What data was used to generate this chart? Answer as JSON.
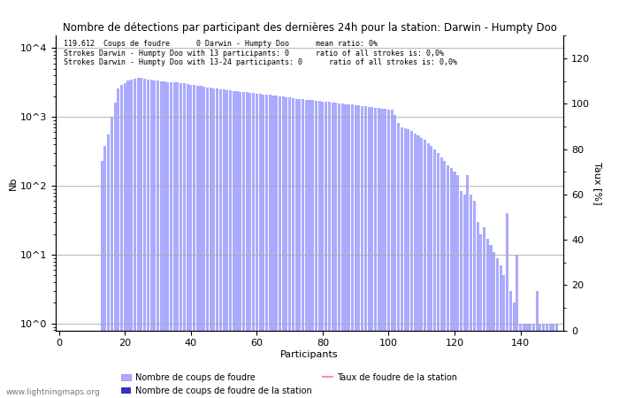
{
  "title": "Nombre de détections par participant des dernières 24h pour la station: Darwin - Humpty Doo",
  "xlabel": "Participants",
  "ylabel_left": "Nb",
  "ylabel_right": "Taux [%]",
  "annotation_lines": [
    "119.612  Coups de foudre      0 Darwin - Humpty Doo      mean ratio: 0%",
    "Strokes Darwin - Humpty Doo with 13 participants: 0      ratio of all strokes is: 0,0%",
    "Strokes Darwin - Humpty Doo with 13-24 participants: 0      ratio of all strokes is: 0,0%"
  ],
  "bar_color_light": "#aaaaff",
  "bar_color_dark": "#3333bb",
  "line_color": "#ff88cc",
  "watermark": "www.lightningmaps.org",
  "ylim_right": [
    0,
    130
  ],
  "xticks": [
    0,
    20,
    40,
    60,
    80,
    100,
    120,
    140
  ],
  "yticks_right": [
    0,
    20,
    40,
    60,
    80,
    100,
    120
  ],
  "yticks_left_labels": [
    "10^0",
    "10^1",
    "10^2",
    "10^3",
    "10^4"
  ],
  "yticks_left_values": [
    1,
    10,
    100,
    1000,
    10000
  ],
  "n_participants": 152,
  "values": [
    0,
    0,
    0,
    0,
    0,
    0,
    0,
    0,
    0,
    0,
    0,
    0,
    0,
    230,
    380,
    560,
    980,
    1600,
    2580,
    2900,
    3050,
    3400,
    3500,
    3600,
    3700,
    3650,
    3600,
    3520,
    3450,
    3400,
    3350,
    3280,
    3250,
    3220,
    3200,
    3180,
    3150,
    3100,
    3050,
    3000,
    2950,
    2900,
    2850,
    2800,
    2750,
    2700,
    2650,
    2600,
    2560,
    2520,
    2480,
    2450,
    2420,
    2390,
    2360,
    2330,
    2300,
    2270,
    2250,
    2220,
    2190,
    2160,
    2130,
    2100,
    2080,
    2050,
    2020,
    1990,
    1960,
    1930,
    1900,
    1870,
    1840,
    1820,
    1800,
    1780,
    1760,
    1740,
    1720,
    1700,
    1680,
    1660,
    1640,
    1620,
    1600,
    1580,
    1560,
    1540,
    1520,
    1500,
    1480,
    1460,
    1440,
    1420,
    1400,
    1380,
    1360,
    1340,
    1320,
    1300,
    1280,
    1260,
    1080,
    820,
    700,
    680,
    660,
    620,
    580,
    540,
    500,
    460,
    420,
    380,
    340,
    300,
    260,
    230,
    200,
    180,
    160,
    145,
    85,
    75,
    145,
    75,
    60,
    30,
    20,
    25,
    17,
    14,
    11,
    9,
    7,
    5,
    40,
    3,
    2,
    10,
    1,
    1,
    1,
    1,
    1,
    3,
    1,
    1,
    1,
    1,
    1,
    1
  ]
}
